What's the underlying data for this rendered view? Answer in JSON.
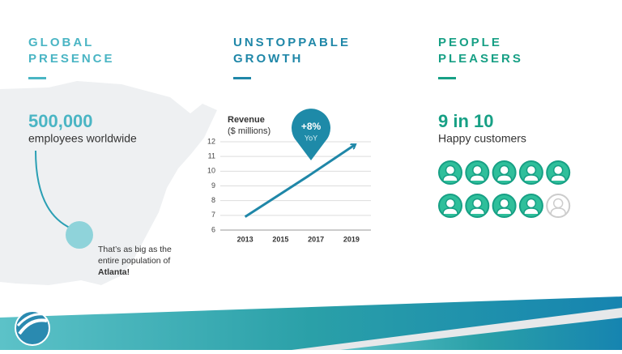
{
  "sections": [
    {
      "title": [
        "GLOBAL",
        "PRESENCE"
      ],
      "stat": "500,000",
      "stat_label": "employees worldwide",
      "note": [
        "That’s as big as the",
        "entire population of",
        "Atlanta!"
      ]
    },
    {
      "title": [
        "UNSTOPPABLE",
        "GROWTH"
      ]
    },
    {
      "title": [
        "PEOPLE",
        "PLEASERS"
      ],
      "stat": "9 in 10",
      "stat_label": "Happy customers",
      "icons": {
        "filled": 9,
        "total": 10
      }
    }
  ],
  "chart_data": {
    "type": "line",
    "title": "Revenue",
    "subtitle": "($ millions)",
    "x": [
      2013,
      2016.6,
      2019.2
    ],
    "values": [
      6.9,
      9.7,
      11.8
    ],
    "color": "#1f87a8",
    "xlim": [
      2011.6,
      2020.1
    ],
    "xticks": [
      2013,
      2015,
      2017,
      2019
    ],
    "ylim": [
      6,
      12
    ],
    "yticks": [
      6,
      7,
      8,
      9,
      10,
      11,
      12
    ],
    "grid": true,
    "annotation": {
      "value": "+8%",
      "label": "YoY"
    }
  }
}
